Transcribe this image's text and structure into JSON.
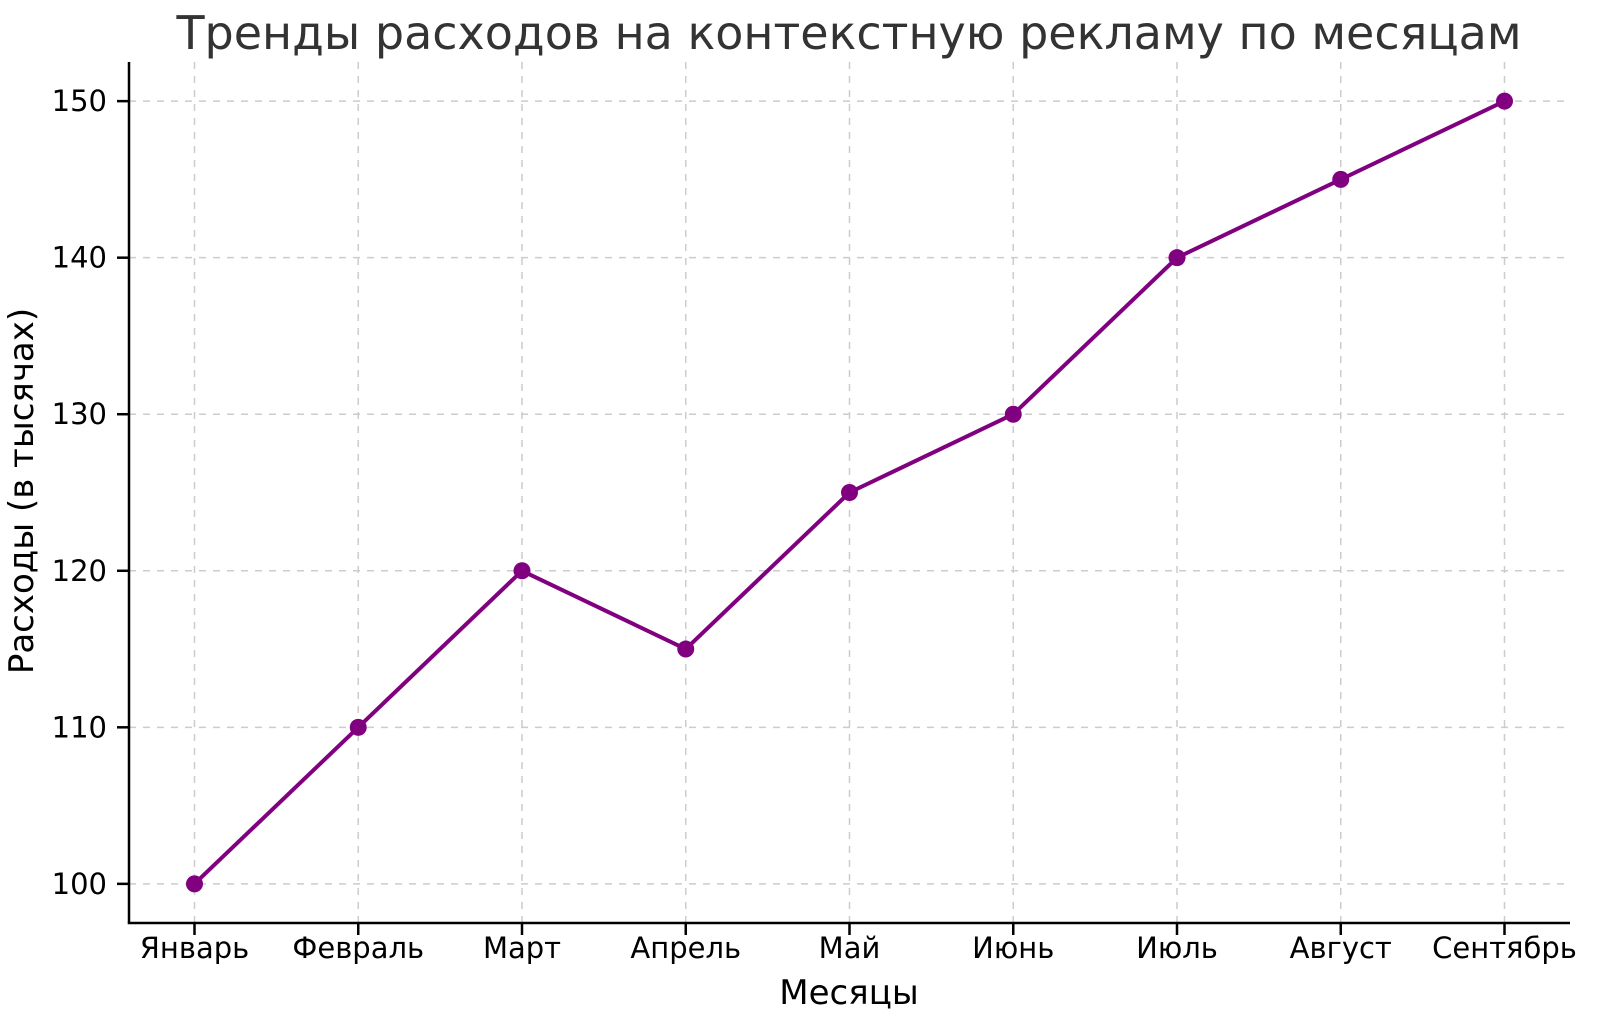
{
  "chart_data": {
    "type": "line",
    "title": "Тренды расходов на контекстную рекламу по месяцам",
    "xlabel": "Месяцы",
    "ylabel": "Расходы (в тысячах)",
    "categories": [
      "Январь",
      "Февраль",
      "Март",
      "Апрель",
      "Май",
      "Июнь",
      "Июль",
      "Август",
      "Сентябрь"
    ],
    "values": [
      100,
      110,
      120,
      115,
      125,
      130,
      140,
      145,
      150
    ],
    "yticks": [
      100,
      110,
      120,
      130,
      140,
      150
    ],
    "ylim": [
      97.5,
      152.5
    ],
    "xlim": [
      -0.4,
      8.4
    ],
    "grid": "dashed-both-axes",
    "legend": "none",
    "line_color": "#800080",
    "marker_shape": "circle",
    "grid_color": "#cccccc",
    "title_color": "#333333",
    "text_color": "#000000",
    "background_color": "#ffffff"
  }
}
